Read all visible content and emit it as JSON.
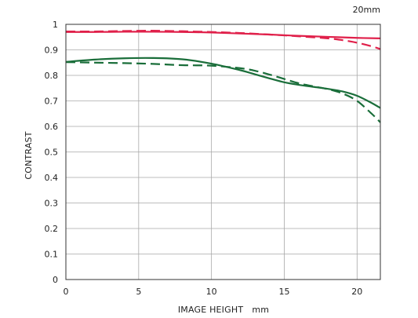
{
  "chart_data": {
    "type": "line",
    "title": "20mm",
    "xlabel": "IMAGE HEIGHT   mm",
    "ylabel": "CONTRAST",
    "xlim": [
      0,
      21.6
    ],
    "ylim": [
      0,
      1
    ],
    "x_ticks": [
      0,
      5,
      10,
      15,
      20
    ],
    "y_ticks": [
      0,
      0.1,
      0.2,
      0.3,
      0.4,
      0.5,
      0.6,
      0.7,
      0.8,
      0.9,
      1
    ],
    "y_tick_labels": [
      "0",
      "0.1",
      "0.2",
      "0.3",
      "0.4",
      "0.5",
      "0.6",
      "0.7",
      "0.8",
      "0.9",
      "1"
    ],
    "grid": true,
    "series": [
      {
        "color": "#e0204a",
        "dash": "solid",
        "x": [
          0,
          2,
          4,
          6,
          8,
          10,
          12,
          14,
          16,
          18,
          20,
          21.6
        ],
        "y": [
          0.97,
          0.97,
          0.971,
          0.971,
          0.97,
          0.968,
          0.964,
          0.96,
          0.955,
          0.951,
          0.947,
          0.945
        ]
      },
      {
        "color": "#e0204a",
        "dash": "dashed",
        "x": [
          0,
          2,
          4,
          6,
          8,
          10,
          12,
          14,
          16,
          18,
          19,
          20,
          21,
          21.6
        ],
        "y": [
          0.972,
          0.972,
          0.974,
          0.975,
          0.973,
          0.97,
          0.966,
          0.96,
          0.953,
          0.945,
          0.938,
          0.928,
          0.914,
          0.903
        ]
      },
      {
        "color": "#1a6e3a",
        "dash": "solid",
        "x": [
          0,
          2,
          4,
          6,
          8,
          10,
          12,
          13,
          14,
          15,
          16,
          17,
          18,
          19,
          20,
          21,
          21.6
        ],
        "y": [
          0.853,
          0.862,
          0.867,
          0.868,
          0.863,
          0.846,
          0.82,
          0.804,
          0.788,
          0.773,
          0.763,
          0.755,
          0.747,
          0.737,
          0.72,
          0.692,
          0.672
        ]
      },
      {
        "color": "#1a6e3a",
        "dash": "dashed",
        "x": [
          0,
          2,
          4,
          6,
          8,
          10,
          12,
          13,
          14,
          15,
          16,
          17,
          18,
          19,
          20,
          21,
          21.6
        ],
        "y": [
          0.852,
          0.85,
          0.848,
          0.845,
          0.84,
          0.838,
          0.828,
          0.818,
          0.803,
          0.786,
          0.769,
          0.757,
          0.746,
          0.729,
          0.7,
          0.65,
          0.616
        ]
      }
    ]
  }
}
